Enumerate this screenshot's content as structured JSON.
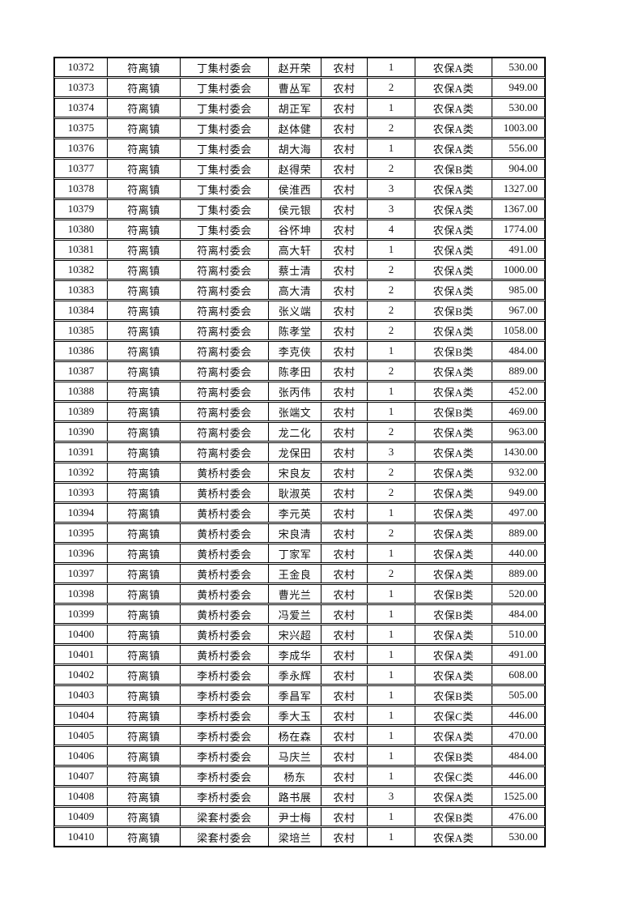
{
  "colors": {
    "page_background": "#ffffff",
    "table_border": "#000000",
    "text": "#111111"
  },
  "table": {
    "column_keys": [
      "serial_number",
      "town",
      "village_committee",
      "person_name",
      "residence_type",
      "person_count",
      "insurance_category",
      "amount"
    ],
    "rows": [
      [
        "10372",
        "符离镇",
        "丁集村委会",
        "赵开荣",
        "农村",
        "1",
        "农保A类",
        "530.00"
      ],
      [
        "10373",
        "符离镇",
        "丁集村委会",
        "曹丛军",
        "农村",
        "2",
        "农保A类",
        "949.00"
      ],
      [
        "10374",
        "符离镇",
        "丁集村委会",
        "胡正军",
        "农村",
        "1",
        "农保A类",
        "530.00"
      ],
      [
        "10375",
        "符离镇",
        "丁集村委会",
        "赵体健",
        "农村",
        "2",
        "农保A类",
        "1003.00"
      ],
      [
        "10376",
        "符离镇",
        "丁集村委会",
        "胡大海",
        "农村",
        "1",
        "农保A类",
        "556.00"
      ],
      [
        "10377",
        "符离镇",
        "丁集村委会",
        "赵得荣",
        "农村",
        "2",
        "农保B类",
        "904.00"
      ],
      [
        "10378",
        "符离镇",
        "丁集村委会",
        "侯淮西",
        "农村",
        "3",
        "农保A类",
        "1327.00"
      ],
      [
        "10379",
        "符离镇",
        "丁集村委会",
        "侯元银",
        "农村",
        "3",
        "农保A类",
        "1367.00"
      ],
      [
        "10380",
        "符离镇",
        "丁集村委会",
        "谷怀坤",
        "农村",
        "4",
        "农保A类",
        "1774.00"
      ],
      [
        "10381",
        "符离镇",
        "符离村委会",
        "高大轩",
        "农村",
        "1",
        "农保A类",
        "491.00"
      ],
      [
        "10382",
        "符离镇",
        "符离村委会",
        "蔡士清",
        "农村",
        "2",
        "农保A类",
        "1000.00"
      ],
      [
        "10383",
        "符离镇",
        "符离村委会",
        "高大清",
        "农村",
        "2",
        "农保A类",
        "985.00"
      ],
      [
        "10384",
        "符离镇",
        "符离村委会",
        "张义端",
        "农村",
        "2",
        "农保B类",
        "967.00"
      ],
      [
        "10385",
        "符离镇",
        "符离村委会",
        "陈孝堂",
        "农村",
        "2",
        "农保A类",
        "1058.00"
      ],
      [
        "10386",
        "符离镇",
        "符离村委会",
        "李克侠",
        "农村",
        "1",
        "农保B类",
        "484.00"
      ],
      [
        "10387",
        "符离镇",
        "符离村委会",
        "陈孝田",
        "农村",
        "2",
        "农保A类",
        "889.00"
      ],
      [
        "10388",
        "符离镇",
        "符离村委会",
        "张丙伟",
        "农村",
        "1",
        "农保A类",
        "452.00"
      ],
      [
        "10389",
        "符离镇",
        "符离村委会",
        "张端文",
        "农村",
        "1",
        "农保B类",
        "469.00"
      ],
      [
        "10390",
        "符离镇",
        "符离村委会",
        "龙二化",
        "农村",
        "2",
        "农保A类",
        "963.00"
      ],
      [
        "10391",
        "符离镇",
        "符离村委会",
        "龙保田",
        "农村",
        "3",
        "农保A类",
        "1430.00"
      ],
      [
        "10392",
        "符离镇",
        "黄桥村委会",
        "宋良友",
        "农村",
        "2",
        "农保A类",
        "932.00"
      ],
      [
        "10393",
        "符离镇",
        "黄桥村委会",
        "耿淑英",
        "农村",
        "2",
        "农保A类",
        "949.00"
      ],
      [
        "10394",
        "符离镇",
        "黄桥村委会",
        "李元英",
        "农村",
        "1",
        "农保A类",
        "497.00"
      ],
      [
        "10395",
        "符离镇",
        "黄桥村委会",
        "宋良清",
        "农村",
        "2",
        "农保A类",
        "889.00"
      ],
      [
        "10396",
        "符离镇",
        "黄桥村委会",
        "丁家军",
        "农村",
        "1",
        "农保A类",
        "440.00"
      ],
      [
        "10397",
        "符离镇",
        "黄桥村委会",
        "王金良",
        "农村",
        "2",
        "农保A类",
        "889.00"
      ],
      [
        "10398",
        "符离镇",
        "黄桥村委会",
        "曹光兰",
        "农村",
        "1",
        "农保B类",
        "520.00"
      ],
      [
        "10399",
        "符离镇",
        "黄桥村委会",
        "冯爱兰",
        "农村",
        "1",
        "农保B类",
        "484.00"
      ],
      [
        "10400",
        "符离镇",
        "黄桥村委会",
        "宋兴超",
        "农村",
        "1",
        "农保A类",
        "510.00"
      ],
      [
        "10401",
        "符离镇",
        "黄桥村委会",
        "李成华",
        "农村",
        "1",
        "农保A类",
        "491.00"
      ],
      [
        "10402",
        "符离镇",
        "李桥村委会",
        "季永辉",
        "农村",
        "1",
        "农保A类",
        "608.00"
      ],
      [
        "10403",
        "符离镇",
        "李桥村委会",
        "季昌军",
        "农村",
        "1",
        "农保B类",
        "505.00"
      ],
      [
        "10404",
        "符离镇",
        "李桥村委会",
        "季大玉",
        "农村",
        "1",
        "农保C类",
        "446.00"
      ],
      [
        "10405",
        "符离镇",
        "李桥村委会",
        "杨在森",
        "农村",
        "1",
        "农保A类",
        "470.00"
      ],
      [
        "10406",
        "符离镇",
        "李桥村委会",
        "马庆兰",
        "农村",
        "1",
        "农保B类",
        "484.00"
      ],
      [
        "10407",
        "符离镇",
        "李桥村委会",
        "杨东",
        "农村",
        "1",
        "农保C类",
        "446.00"
      ],
      [
        "10408",
        "符离镇",
        "李桥村委会",
        "路书展",
        "农村",
        "3",
        "农保A类",
        "1525.00"
      ],
      [
        "10409",
        "符离镇",
        "梁套村委会",
        "尹士梅",
        "农村",
        "1",
        "农保B类",
        "476.00"
      ],
      [
        "10410",
        "符离镇",
        "梁套村委会",
        "梁培兰",
        "农村",
        "1",
        "农保A类",
        "530.00"
      ]
    ]
  }
}
